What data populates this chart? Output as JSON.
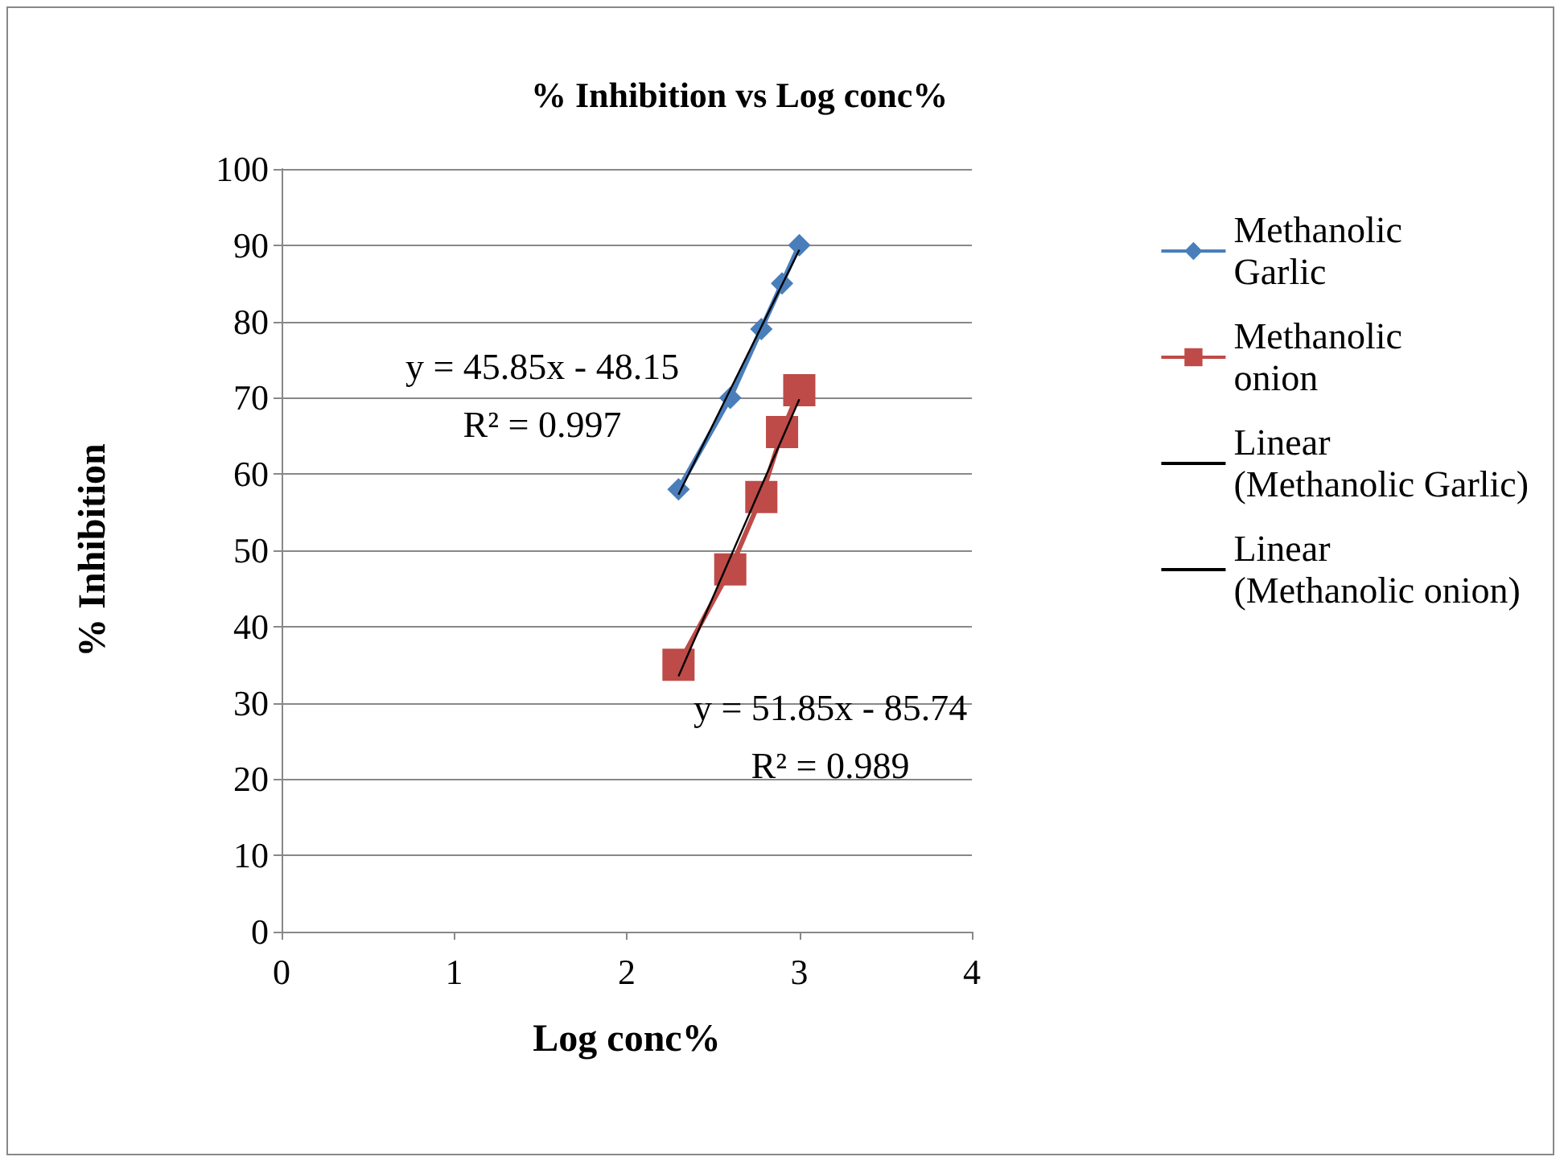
{
  "chart_data": {
    "type": "line",
    "title": "% Inhibition vs Log conc%",
    "xlabel": "Log conc%",
    "ylabel": "% Inhibition",
    "xlim": [
      0,
      4
    ],
    "xticks": [
      0,
      1,
      2,
      3,
      4
    ],
    "ylim": [
      0,
      100
    ],
    "yticks": [
      0,
      10,
      20,
      30,
      40,
      50,
      60,
      70,
      80,
      90,
      100
    ],
    "grid": "y",
    "legend": "right",
    "series": [
      {
        "name": "Methanolic Garlic",
        "color": "#4a7ebb",
        "marker": "diamond",
        "x": [
          2.3,
          2.6,
          2.78,
          2.9,
          3.0
        ],
        "values": [
          58,
          70,
          79,
          85,
          90
        ]
      },
      {
        "name": "Methanolic onion",
        "color": "#be4b48",
        "marker": "square",
        "x": [
          2.3,
          2.6,
          2.78,
          2.9,
          3.0
        ],
        "values": [
          35,
          47.5,
          57,
          65.5,
          71
        ]
      },
      {
        "name": "Linear (Methanolic Garlic)",
        "color": "#000000",
        "marker": "none",
        "x": [
          2.3,
          3.0
        ],
        "values": [
          57.3,
          89.4
        ]
      },
      {
        "name": "Linear (Methanolic onion)",
        "color": "#000000",
        "marker": "none",
        "x": [
          2.3,
          3.0
        ],
        "values": [
          33.5,
          69.8
        ]
      }
    ],
    "annotations": [
      "y = 45.85x - 48.15\nR² = 0.997",
      "y = 51.85x - 85.74\nR² = 0.989"
    ]
  }
}
